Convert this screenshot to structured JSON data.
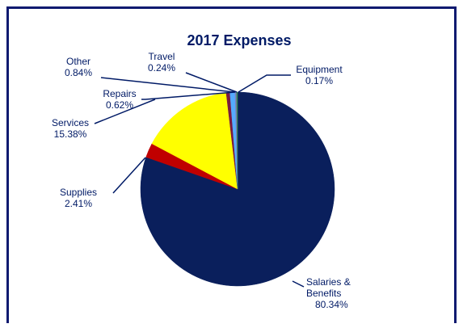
{
  "chart_data": {
    "type": "pie",
    "title": "2017 Expenses",
    "slices": [
      {
        "label": "Salaries & Benefits",
        "value": 80.34,
        "display": "80.34%",
        "color": "#0a1f5c"
      },
      {
        "label": "Supplies",
        "value": 2.41,
        "display": "2.41%",
        "color": "#c00000"
      },
      {
        "label": "Services",
        "value": 15.38,
        "display": "15.38%",
        "color": "#ffff00"
      },
      {
        "label": "Repairs",
        "value": 0.62,
        "display": "0.62%",
        "color": "#7a1a40"
      },
      {
        "label": "Other",
        "value": 0.84,
        "display": "0.84%",
        "color": "#55aaff"
      },
      {
        "label": "Travel",
        "value": 0.24,
        "display": "0.24%",
        "color": "#8080c0"
      },
      {
        "label": "Equipment",
        "value": 0.17,
        "display": "0.17%",
        "color": "#3a8a5a"
      }
    ],
    "legend": "none",
    "data_labels": "outside with leader lines"
  },
  "colors": {
    "frame": "#0f1a70",
    "label_text": "#001a66",
    "leader_line": "#001a66"
  }
}
